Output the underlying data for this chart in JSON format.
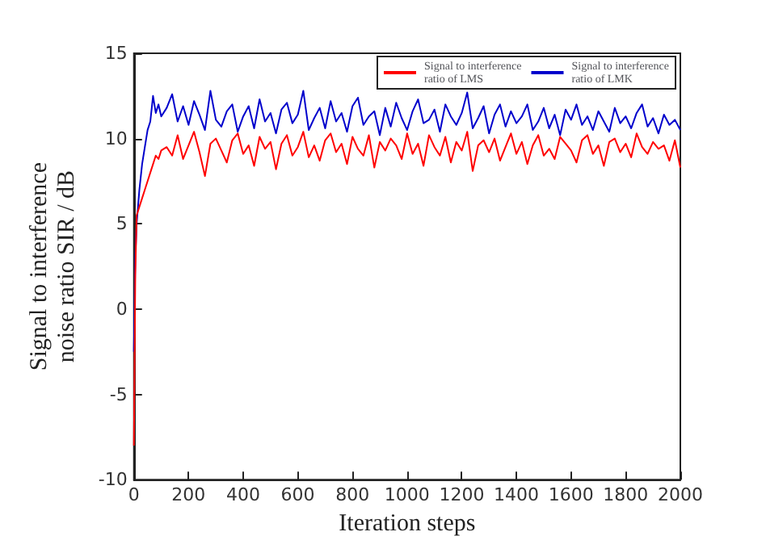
{
  "chart_data": {
    "type": "line",
    "xlabel": "Iteration steps",
    "ylabel": "Signal to interference\nnoise ratio SIR / dB",
    "xlim": [
      0,
      2000
    ],
    "xticks": [
      0,
      200,
      400,
      600,
      800,
      1000,
      1200,
      1400,
      1600,
      1800,
      2000
    ],
    "ylim": [
      -10,
      15
    ],
    "yticks": [
      -10,
      -5,
      0,
      5,
      10,
      15
    ],
    "grid": false,
    "legend": "top right",
    "marker": "none",
    "line_style": "solid",
    "x": [
      0,
      5,
      10,
      20,
      30,
      40,
      50,
      60,
      70,
      80,
      90,
      100,
      120,
      140,
      160,
      180,
      200,
      220,
      240,
      260,
      280,
      300,
      320,
      340,
      360,
      380,
      400,
      420,
      440,
      460,
      480,
      500,
      520,
      540,
      560,
      580,
      600,
      620,
      640,
      660,
      680,
      700,
      720,
      740,
      760,
      780,
      800,
      820,
      840,
      860,
      880,
      900,
      920,
      940,
      960,
      980,
      1000,
      1020,
      1040,
      1060,
      1080,
      1100,
      1120,
      1140,
      1160,
      1180,
      1200,
      1220,
      1240,
      1260,
      1280,
      1300,
      1320,
      1340,
      1360,
      1380,
      1400,
      1420,
      1440,
      1460,
      1480,
      1500,
      1520,
      1540,
      1560,
      1580,
      1600,
      1620,
      1640,
      1660,
      1680,
      1700,
      1720,
      1740,
      1760,
      1780,
      1800,
      1820,
      1840,
      1860,
      1880,
      1900,
      1920,
      1940,
      1960,
      1980,
      2000
    ],
    "series": [
      {
        "name": "Signal to interference\nratio of LMS",
        "color": "#ff0000",
        "values": [
          -8,
          2,
          5.5,
          6,
          6.5,
          7,
          7.5,
          8,
          8.5,
          9,
          8.8,
          9.3,
          9.5,
          9.0,
          10.2,
          8.8,
          9.6,
          10.4,
          9.2,
          7.8,
          9.7,
          10.0,
          9.3,
          8.6,
          9.9,
          10.3,
          9.1,
          9.6,
          8.4,
          10.1,
          9.4,
          9.8,
          8.2,
          9.7,
          10.2,
          9.0,
          9.5,
          10.4,
          8.9,
          9.6,
          8.7,
          9.9,
          10.3,
          9.2,
          9.7,
          8.5,
          10.1,
          9.4,
          9.0,
          10.2,
          8.3,
          9.8,
          9.3,
          10.0,
          9.6,
          8.8,
          10.3,
          9.1,
          9.7,
          8.4,
          10.2,
          9.5,
          9.0,
          10.1,
          8.6,
          9.8,
          9.3,
          10.4,
          8.1,
          9.6,
          9.9,
          9.2,
          10.0,
          8.7,
          9.5,
          10.3,
          9.1,
          9.8,
          8.5,
          9.6,
          10.2,
          9.0,
          9.4,
          8.8,
          10.1,
          9.7,
          9.3,
          8.6,
          9.9,
          10.2,
          9.1,
          9.6,
          8.4,
          9.8,
          10.0,
          9.2,
          9.7,
          8.9,
          10.3,
          9.5,
          9.1,
          9.8,
          9.4,
          9.6,
          8.7,
          9.9,
          8.3
        ]
      },
      {
        "name": "Signal to interference\nratio of LMK",
        "color": "#0000cc",
        "values": [
          -2.5,
          3,
          5,
          7,
          8.5,
          9.5,
          10.5,
          11,
          12.5,
          11.5,
          12,
          11.3,
          11.8,
          12.6,
          11.0,
          11.9,
          10.8,
          12.2,
          11.4,
          10.5,
          12.8,
          11.1,
          10.7,
          11.6,
          12.0,
          10.4,
          11.3,
          11.9,
          10.6,
          12.3,
          11.0,
          11.5,
          10.3,
          11.7,
          12.1,
          10.9,
          11.4,
          12.8,
          10.5,
          11.2,
          11.8,
          10.6,
          12.2,
          11.0,
          11.5,
          10.4,
          11.9,
          12.4,
          10.8,
          11.3,
          11.6,
          10.2,
          11.8,
          10.7,
          12.1,
          11.2,
          10.5,
          11.6,
          12.3,
          10.9,
          11.1,
          11.7,
          10.4,
          12.0,
          11.3,
          10.8,
          11.5,
          12.7,
          10.6,
          11.2,
          11.9,
          10.3,
          11.4,
          12.0,
          10.7,
          11.6,
          10.9,
          11.3,
          12.0,
          10.5,
          11.0,
          11.8,
          10.6,
          11.4,
          10.2,
          11.7,
          11.1,
          12.0,
          10.8,
          11.3,
          10.5,
          11.6,
          11.0,
          10.4,
          11.8,
          10.9,
          11.3,
          10.6,
          11.5,
          12.0,
          10.7,
          11.2,
          10.3,
          11.4,
          10.8,
          11.1,
          10.5
        ]
      }
    ]
  }
}
